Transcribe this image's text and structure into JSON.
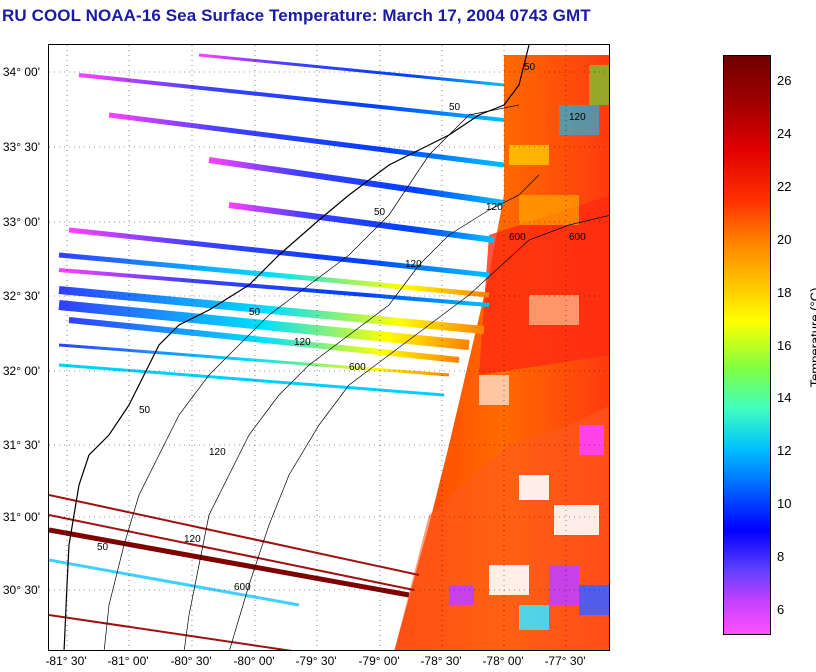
{
  "title": "RU COOL  NOAA-16  Sea Surface Temperature:  March 17, 2004 0743 GMT",
  "lat_ticks": [
    "34° 00'",
    "33° 30'",
    "33° 00'",
    "32° 30'",
    "32° 00'",
    "31° 30'",
    "31° 00'",
    "30° 30'"
  ],
  "lon_ticks": [
    "-81° 30'",
    "-81° 00'",
    "-80° 30'",
    "-80° 00'",
    "-79° 30'",
    "-79° 00'",
    "-78° 30'",
    "-78° 00'",
    "-77° 30'"
  ],
  "colorbar": {
    "title": "Temperature (°C)",
    "ticks": [
      "26",
      "24",
      "22",
      "20",
      "18",
      "16",
      "14",
      "12",
      "10",
      "8",
      "6"
    ],
    "min": 5,
    "max": 27
  },
  "isobath_labels": [
    "50",
    "120",
    "600",
    "50",
    "120",
    "600",
    "50",
    "120",
    "50",
    "120",
    "600",
    "50",
    "120",
    "600",
    "50",
    "120"
  ]
}
